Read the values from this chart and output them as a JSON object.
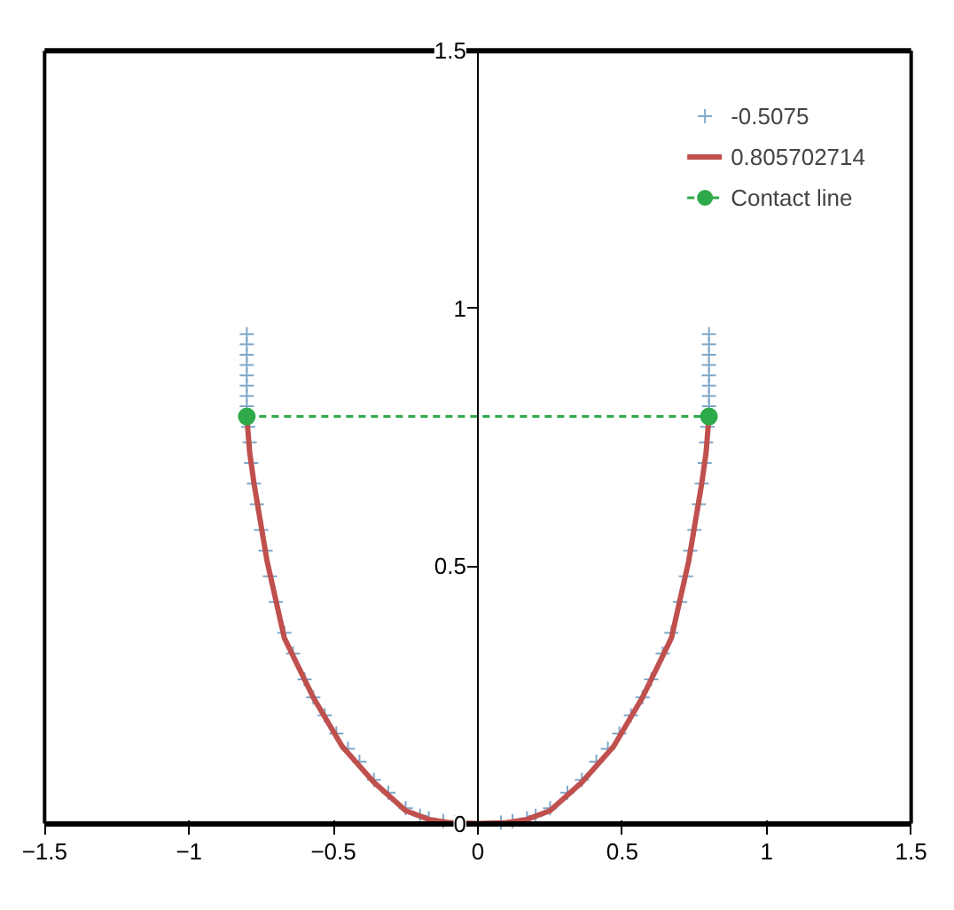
{
  "chart_data": {
    "type": "line",
    "xlim": [
      -1.5,
      1.5
    ],
    "ylim": [
      0,
      1.5
    ],
    "xticks": [
      -1.5,
      -1,
      -0.5,
      0,
      0.5,
      1,
      1.5
    ],
    "yticks": [
      0,
      0.5,
      1,
      1.5
    ],
    "grid": false,
    "legend": "top right",
    "series": [
      {
        "name": "-0.5075",
        "type": "scatter",
        "marker": "cross",
        "color": "#7fa7c9",
        "x": [
          -0.8,
          -0.8,
          -0.8,
          -0.8,
          -0.8,
          -0.8,
          -0.8,
          -0.8,
          -0.795,
          -0.79,
          -0.785,
          -0.775,
          -0.765,
          -0.75,
          -0.735,
          -0.72,
          -0.7,
          -0.67,
          -0.64,
          -0.6,
          -0.57,
          -0.53,
          -0.49,
          -0.45,
          -0.41,
          -0.36,
          -0.31,
          -0.25,
          -0.2,
          -0.17,
          -0.12,
          -0.08,
          0.08,
          0.12,
          0.17,
          0.2,
          0.25,
          0.31,
          0.36,
          0.41,
          0.45,
          0.49,
          0.53,
          0.57,
          0.6,
          0.64,
          0.67,
          0.7,
          0.72,
          0.735,
          0.75,
          0.765,
          0.775,
          0.785,
          0.79,
          0.795,
          0.8,
          0.8,
          0.8,
          0.8,
          0.8,
          0.8,
          0.8,
          0.8
        ],
        "values": [
          0.95,
          0.93,
          0.91,
          0.89,
          0.87,
          0.85,
          0.83,
          0.81,
          0.77,
          0.74,
          0.7,
          0.66,
          0.62,
          0.57,
          0.53,
          0.48,
          0.43,
          0.37,
          0.33,
          0.28,
          0.245,
          0.21,
          0.175,
          0.145,
          0.12,
          0.085,
          0.06,
          0.03,
          0.015,
          0.01,
          0.005,
          0.002,
          0.002,
          0.005,
          0.01,
          0.015,
          0.03,
          0.06,
          0.085,
          0.12,
          0.145,
          0.175,
          0.21,
          0.245,
          0.28,
          0.33,
          0.37,
          0.43,
          0.48,
          0.53,
          0.57,
          0.62,
          0.66,
          0.7,
          0.74,
          0.77,
          0.81,
          0.83,
          0.85,
          0.87,
          0.89,
          0.91,
          0.93,
          0.95
        ]
      },
      {
        "name": "0.805702714",
        "marker": "none",
        "line_style": "solid",
        "color": "#c0504d",
        "x": [
          -0.8,
          -0.79,
          -0.775,
          -0.73,
          -0.67,
          -0.57,
          -0.47,
          -0.36,
          -0.25,
          -0.17,
          -0.1,
          0,
          0.1,
          0.17,
          0.25,
          0.36,
          0.47,
          0.57,
          0.67,
          0.73,
          0.775,
          0.79,
          0.8
        ],
        "values": [
          0.79,
          0.72,
          0.66,
          0.51,
          0.36,
          0.245,
          0.15,
          0.08,
          0.025,
          0.008,
          0.002,
          0,
          0.002,
          0.008,
          0.025,
          0.08,
          0.15,
          0.245,
          0.36,
          0.51,
          0.66,
          0.72,
          0.79
        ]
      },
      {
        "name": "Contact line",
        "marker": "circle",
        "line_style": "dashed",
        "color": "#2eaa4a",
        "x": [
          -0.8,
          0.8
        ],
        "values": [
          0.79,
          0.79
        ]
      }
    ]
  }
}
